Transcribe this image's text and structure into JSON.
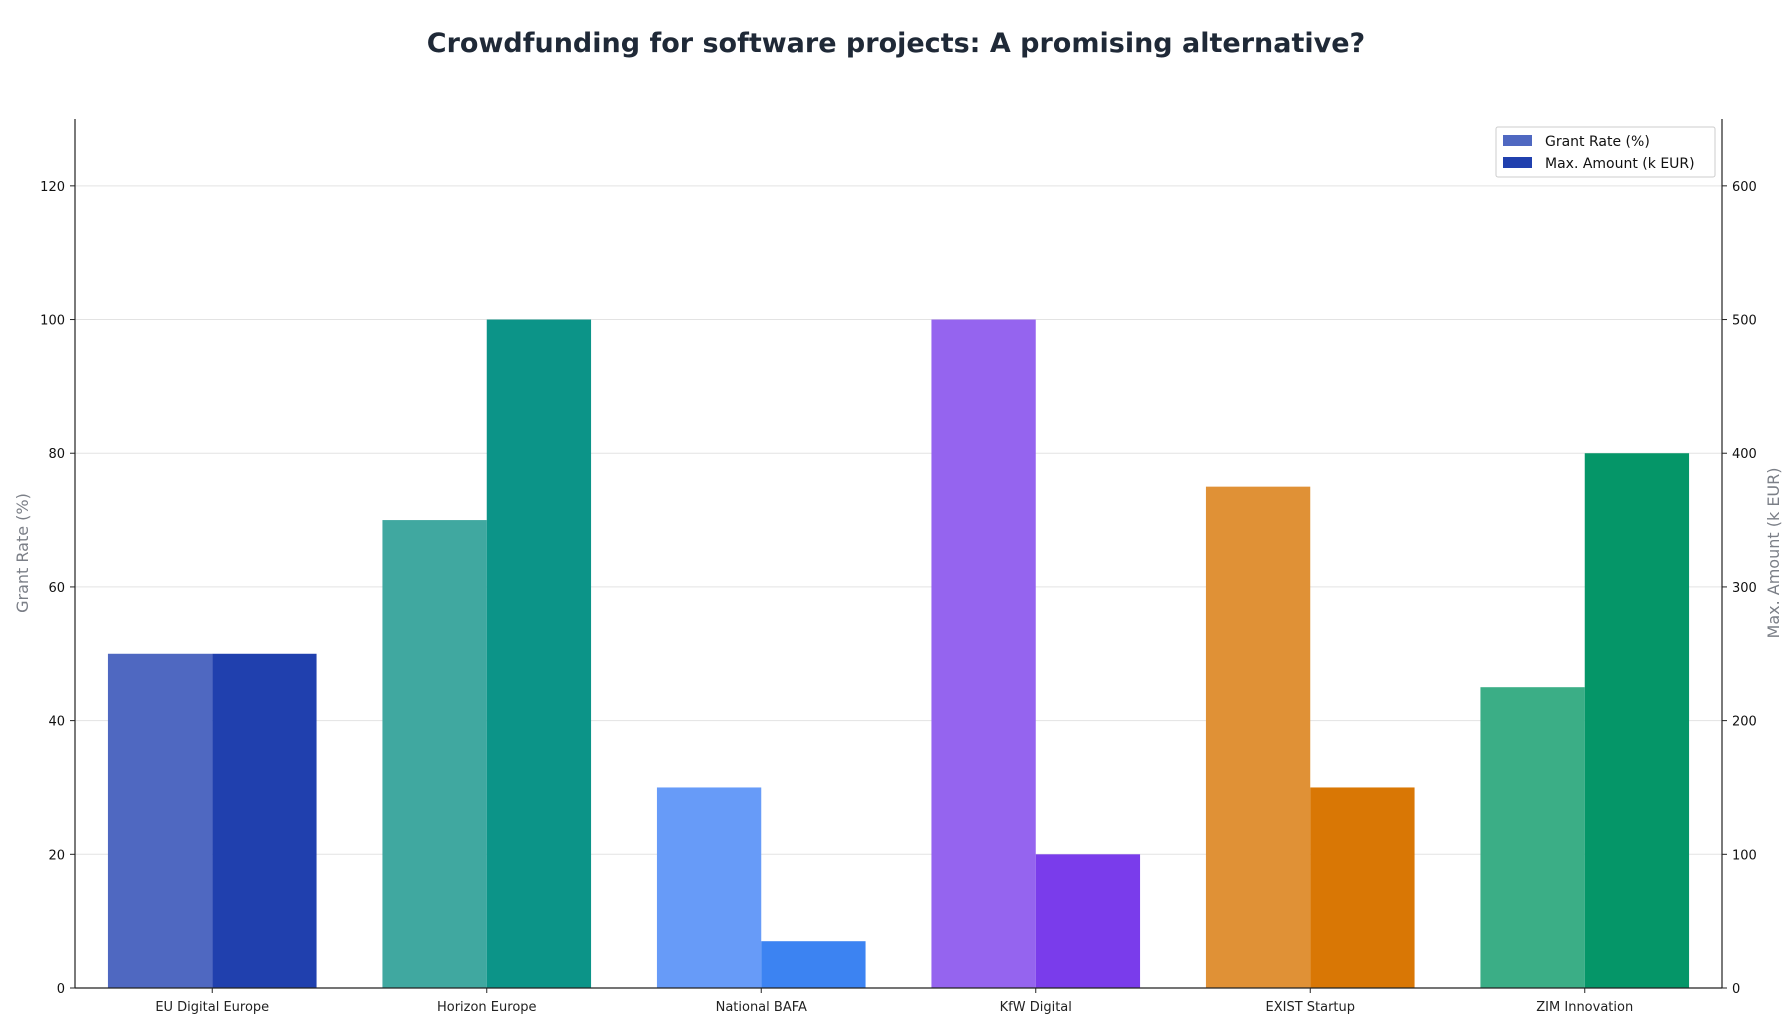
{
  "chart_data": {
    "type": "bar",
    "title": "Crowdfunding for software projects: A promising alternative?",
    "categories": [
      "EU Digital Europe",
      "Horizon Europe",
      "National BAFA",
      "KfW Digital",
      "EXIST Startup",
      "ZIM Innovation"
    ],
    "series": [
      {
        "name": "Grant Rate (%)",
        "axis": "left",
        "values": [
          50,
          70,
          30,
          100,
          75,
          45
        ],
        "legend_color": "#4f68c1",
        "colors": [
          "#4f68c1",
          "#40a8a0",
          "#679bf8",
          "#9564ef",
          "#e09136",
          "#3bae86"
        ]
      },
      {
        "name": "Max. Amount (k EUR)",
        "axis": "right",
        "values": [
          250,
          500,
          35,
          100,
          150,
          400
        ],
        "legend_color": "#2040ae",
        "colors": [
          "#2040ae",
          "#0c9488",
          "#3c83f2",
          "#7a3ceb",
          "#d97705",
          "#059668"
        ]
      }
    ],
    "y_left": {
      "label": "Grant Rate (%)",
      "ylim": [
        0,
        130
      ],
      "ticks": [
        0,
        20,
        40,
        60,
        80,
        100,
        120
      ]
    },
    "y_right": {
      "label": "Max. Amount (k EUR)",
      "ylim": [
        0,
        650
      ],
      "ticks": [
        0,
        100,
        200,
        300,
        400,
        500,
        600
      ]
    },
    "grid": true,
    "legend_position": "top-right"
  }
}
